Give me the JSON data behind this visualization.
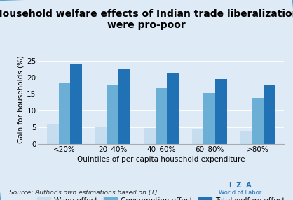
{
  "title": "Household welfare effects of Indian trade liberalization\nwere pro-poor",
  "xlabel": "Quintiles of per capita household expenditure",
  "ylabel": "Gain for households (%)",
  "categories": [
    "<20%",
    "20–40%",
    "40–60%",
    "60–80%",
    ">80%"
  ],
  "series": {
    "Wage effect": [
      6.0,
      5.0,
      4.8,
      4.3,
      3.7
    ],
    "Consumption effect": [
      18.2,
      17.7,
      16.8,
      15.3,
      13.9
    ],
    "Total welfare effect": [
      24.1,
      22.5,
      21.3,
      19.5,
      17.7
    ]
  },
  "colors": {
    "Wage effect": "#c5ddef",
    "Consumption effect": "#6baed6",
    "Total welfare effect": "#2171b5"
  },
  "ylim": [
    0,
    27
  ],
  "yticks": [
    0,
    5,
    10,
    15,
    20,
    25
  ],
  "source_text": "Source: Author's own estimations based on [1].",
  "fig_background_color": "#deeaf5",
  "plot_background_color": "#deeaf5",
  "border_color": "#5ba3d0",
  "title_fontsize": 10,
  "axis_fontsize": 7.5,
  "tick_fontsize": 7.5,
  "legend_fontsize": 7.5
}
